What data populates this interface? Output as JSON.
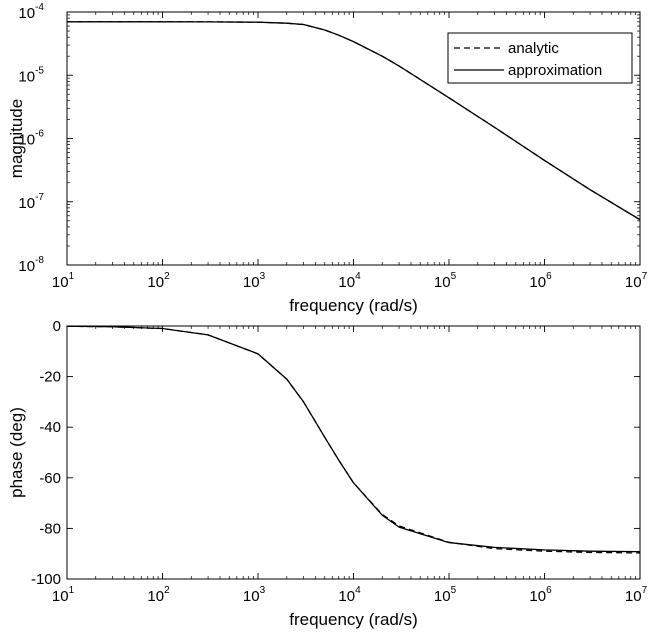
{
  "chart_data": [
    {
      "type": "line",
      "xlabel": "frequency (rad/s)",
      "ylabel": "magnitude",
      "xscale": "log",
      "yscale": "log",
      "xlim": [
        10,
        10000000
      ],
      "ylim": [
        1e-08,
        0.0001
      ],
      "grid": false,
      "legend_position": "top-right",
      "x_ticks": [
        {
          "base": "10",
          "exp": "1"
        },
        {
          "base": "10",
          "exp": "2"
        },
        {
          "base": "10",
          "exp": "3"
        },
        {
          "base": "10",
          "exp": "4"
        },
        {
          "base": "10",
          "exp": "5"
        },
        {
          "base": "10",
          "exp": "6"
        },
        {
          "base": "10",
          "exp": "7"
        }
      ],
      "y_ticks": [
        {
          "base": "10",
          "exp": "-8"
        },
        {
          "base": "10",
          "exp": "-7"
        },
        {
          "base": "10",
          "exp": "-6"
        },
        {
          "base": "10",
          "exp": "-5"
        },
        {
          "base": "10",
          "exp": "-4"
        }
      ],
      "series": [
        {
          "name": "analytic",
          "style": "dashed",
          "color": "#000000",
          "x": [
            10,
            30,
            100,
            300,
            1000,
            2000,
            3000,
            5000,
            7000,
            10000,
            20000,
            30000,
            100000,
            300000,
            1000000,
            3000000,
            10000000
          ],
          "y": [
            7e-05,
            7e-05,
            7e-05,
            6.99e-05,
            6.9e-05,
            6.65e-05,
            6.35e-05,
            5.2e-05,
            4.3e-05,
            3.4e-05,
            2e-05,
            1.4e-05,
            4.4e-06,
            1.5e-06,
            4.5e-07,
            1.55e-07,
            5.2e-08
          ]
        },
        {
          "name": "approximation",
          "style": "solid",
          "color": "#000000",
          "x": [
            10,
            30,
            100,
            300,
            1000,
            2000,
            3000,
            5000,
            7000,
            10000,
            20000,
            30000,
            100000,
            300000,
            1000000,
            3000000,
            10000000
          ],
          "y": [
            7e-05,
            7e-05,
            7e-05,
            6.99e-05,
            6.9e-05,
            6.65e-05,
            6.35e-05,
            5.2e-05,
            4.3e-05,
            3.4e-05,
            2e-05,
            1.4e-05,
            4.4e-06,
            1.5e-06,
            4.5e-07,
            1.55e-07,
            5.2e-08
          ]
        }
      ]
    },
    {
      "type": "line",
      "xlabel": "frequency (rad/s)",
      "ylabel": "phase (deg)",
      "xscale": "log",
      "yscale": "linear",
      "xlim": [
        10,
        10000000
      ],
      "ylim": [
        -100,
        0
      ],
      "grid": false,
      "x_ticks": [
        {
          "base": "10",
          "exp": "1"
        },
        {
          "base": "10",
          "exp": "2"
        },
        {
          "base": "10",
          "exp": "3"
        },
        {
          "base": "10",
          "exp": "4"
        },
        {
          "base": "10",
          "exp": "5"
        },
        {
          "base": "10",
          "exp": "6"
        },
        {
          "base": "10",
          "exp": "7"
        }
      ],
      "y_ticks": [
        "0",
        "-20",
        "-40",
        "-60",
        "-80",
        "-100"
      ],
      "series": [
        {
          "name": "analytic",
          "style": "dashed",
          "color": "#000000",
          "x": [
            10,
            30,
            100,
            300,
            1000,
            2000,
            3000,
            5000,
            7000,
            10000,
            20000,
            30000,
            100000,
            300000,
            1000000,
            3000000,
            10000000
          ],
          "y": [
            -0.1,
            -0.3,
            -1,
            -3.5,
            -11,
            -21,
            -30,
            -44,
            -53,
            -62,
            -74.5,
            -79,
            -85.5,
            -88,
            -89,
            -89.5,
            -89.7
          ]
        },
        {
          "name": "approximation",
          "style": "solid",
          "color": "#000000",
          "x": [
            10,
            30,
            100,
            300,
            1000,
            2000,
            3000,
            5000,
            7000,
            10000,
            20000,
            30000,
            100000,
            300000,
            1000000,
            3000000,
            10000000
          ],
          "y": [
            -0.1,
            -0.3,
            -1,
            -3.5,
            -11,
            -21,
            -30,
            -44,
            -53,
            -62,
            -74.8,
            -79.5,
            -85.6,
            -87.5,
            -88.5,
            -89,
            -89.2
          ]
        }
      ]
    }
  ]
}
